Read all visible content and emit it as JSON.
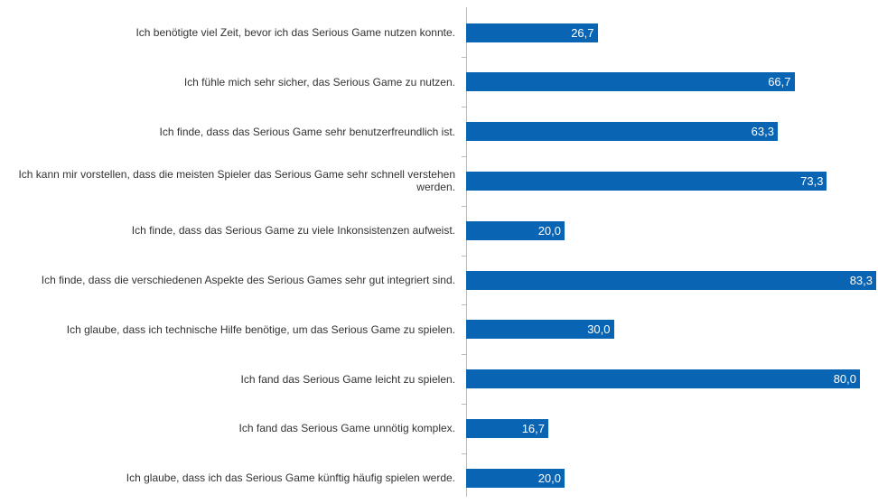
{
  "chart_data": {
    "type": "hbar",
    "categories": [
      "Ich benötigte viel Zeit, bevor ich das Serious Game nutzen konnte.",
      "Ich fühle mich sehr sicher, das Serious Game zu nutzen.",
      "Ich finde, dass das Serious Game sehr benutzerfreundlich ist.",
      "Ich kann mir vorstellen, dass die meisten Spieler das Serious Game sehr schnell verstehen werden.",
      "Ich finde, dass das Serious Game zu viele Inkonsistenzen aufweist.",
      "Ich finde, dass die verschiedenen Aspekte des Serious Games sehr gut integriert sind.",
      "Ich glaube, dass ich technische Hilfe benötige, um das Serious Game zu spielen.",
      "Ich fand das Serious Game leicht zu spielen.",
      "Ich fand das Serious Game unnötig komplex.",
      "Ich glaube, dass ich das Serious Game künftig häufig spielen werde."
    ],
    "values": [
      26.7,
      66.7,
      63.3,
      73.3,
      20.0,
      83.3,
      30.0,
      80.0,
      16.7,
      20.0
    ],
    "value_labels": [
      "26,7",
      "66,7",
      "63,3",
      "73,3",
      "20,0",
      "83,3",
      "30,0",
      "80,0",
      "16,7",
      "20,0"
    ],
    "color": "#0a64b4"
  }
}
